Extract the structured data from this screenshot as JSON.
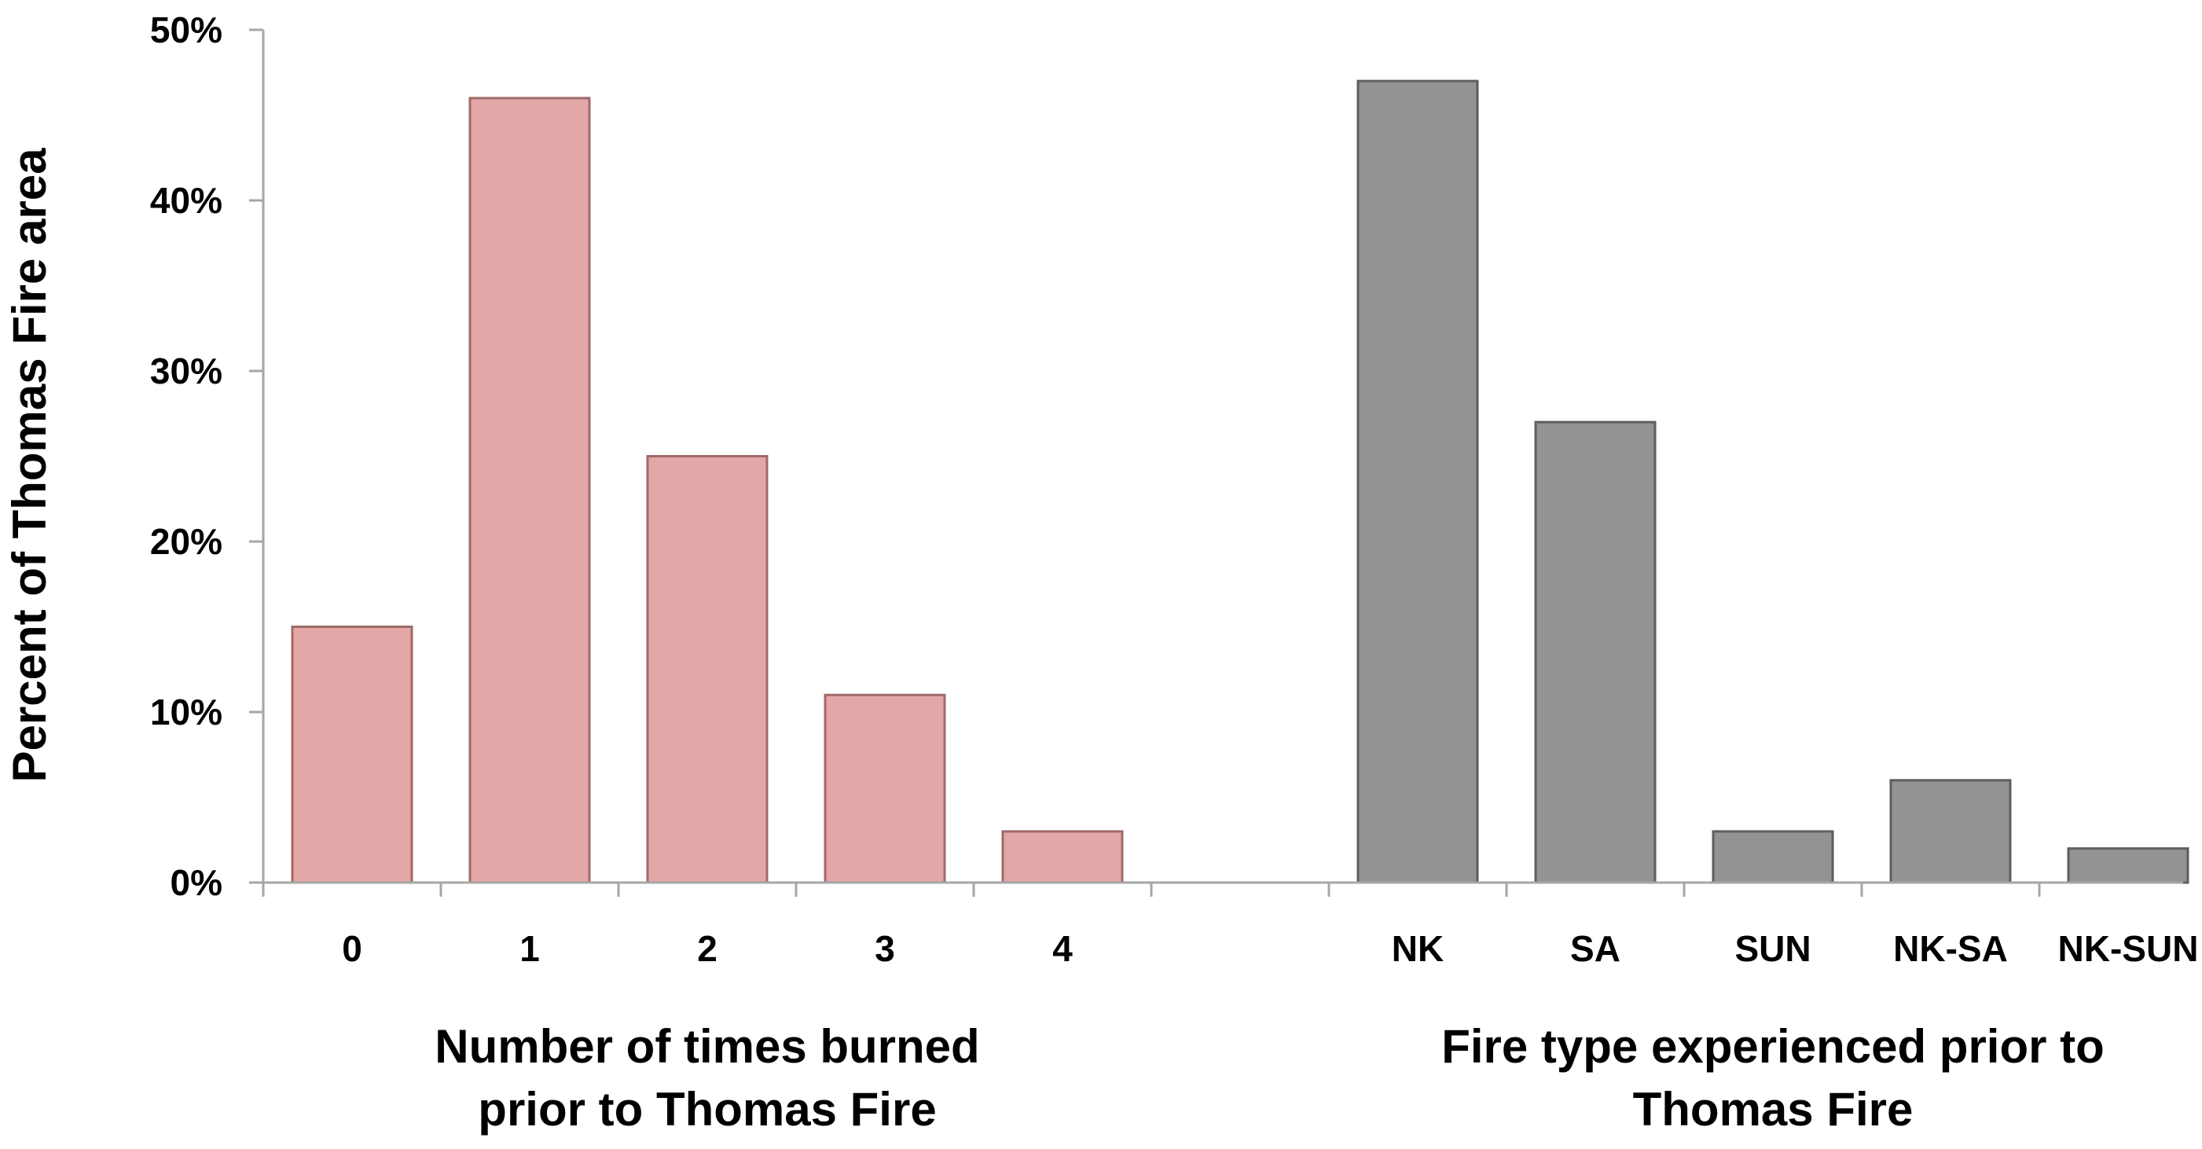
{
  "chart_data": {
    "type": "bar",
    "ylabel": "Percent of Thomas Fire area",
    "ylim": [
      0,
      50
    ],
    "yticks": [
      "0%",
      "10%",
      "20%",
      "30%",
      "40%",
      "50%"
    ],
    "ytick_values": [
      0,
      10,
      20,
      30,
      40,
      50
    ],
    "grid": false,
    "groups": [
      {
        "title_lines": [
          "Number of times burned",
          "prior to Thomas Fire"
        ],
        "categories": [
          "0",
          "1",
          "2",
          "3",
          "4"
        ],
        "values": [
          15,
          46,
          25,
          11,
          3
        ],
        "color": "#e3a7a7",
        "edge_color": "#a06a6a"
      },
      {
        "title_lines": [
          "Fire type experienced prior to",
          "Thomas Fire"
        ],
        "categories": [
          "NK",
          "SA",
          "SUN",
          "NK-SA",
          "NK-SUN"
        ],
        "values": [
          47,
          27,
          3,
          6,
          2
        ],
        "color": "#939393",
        "edge_color": "#5e5e5e"
      }
    ]
  }
}
